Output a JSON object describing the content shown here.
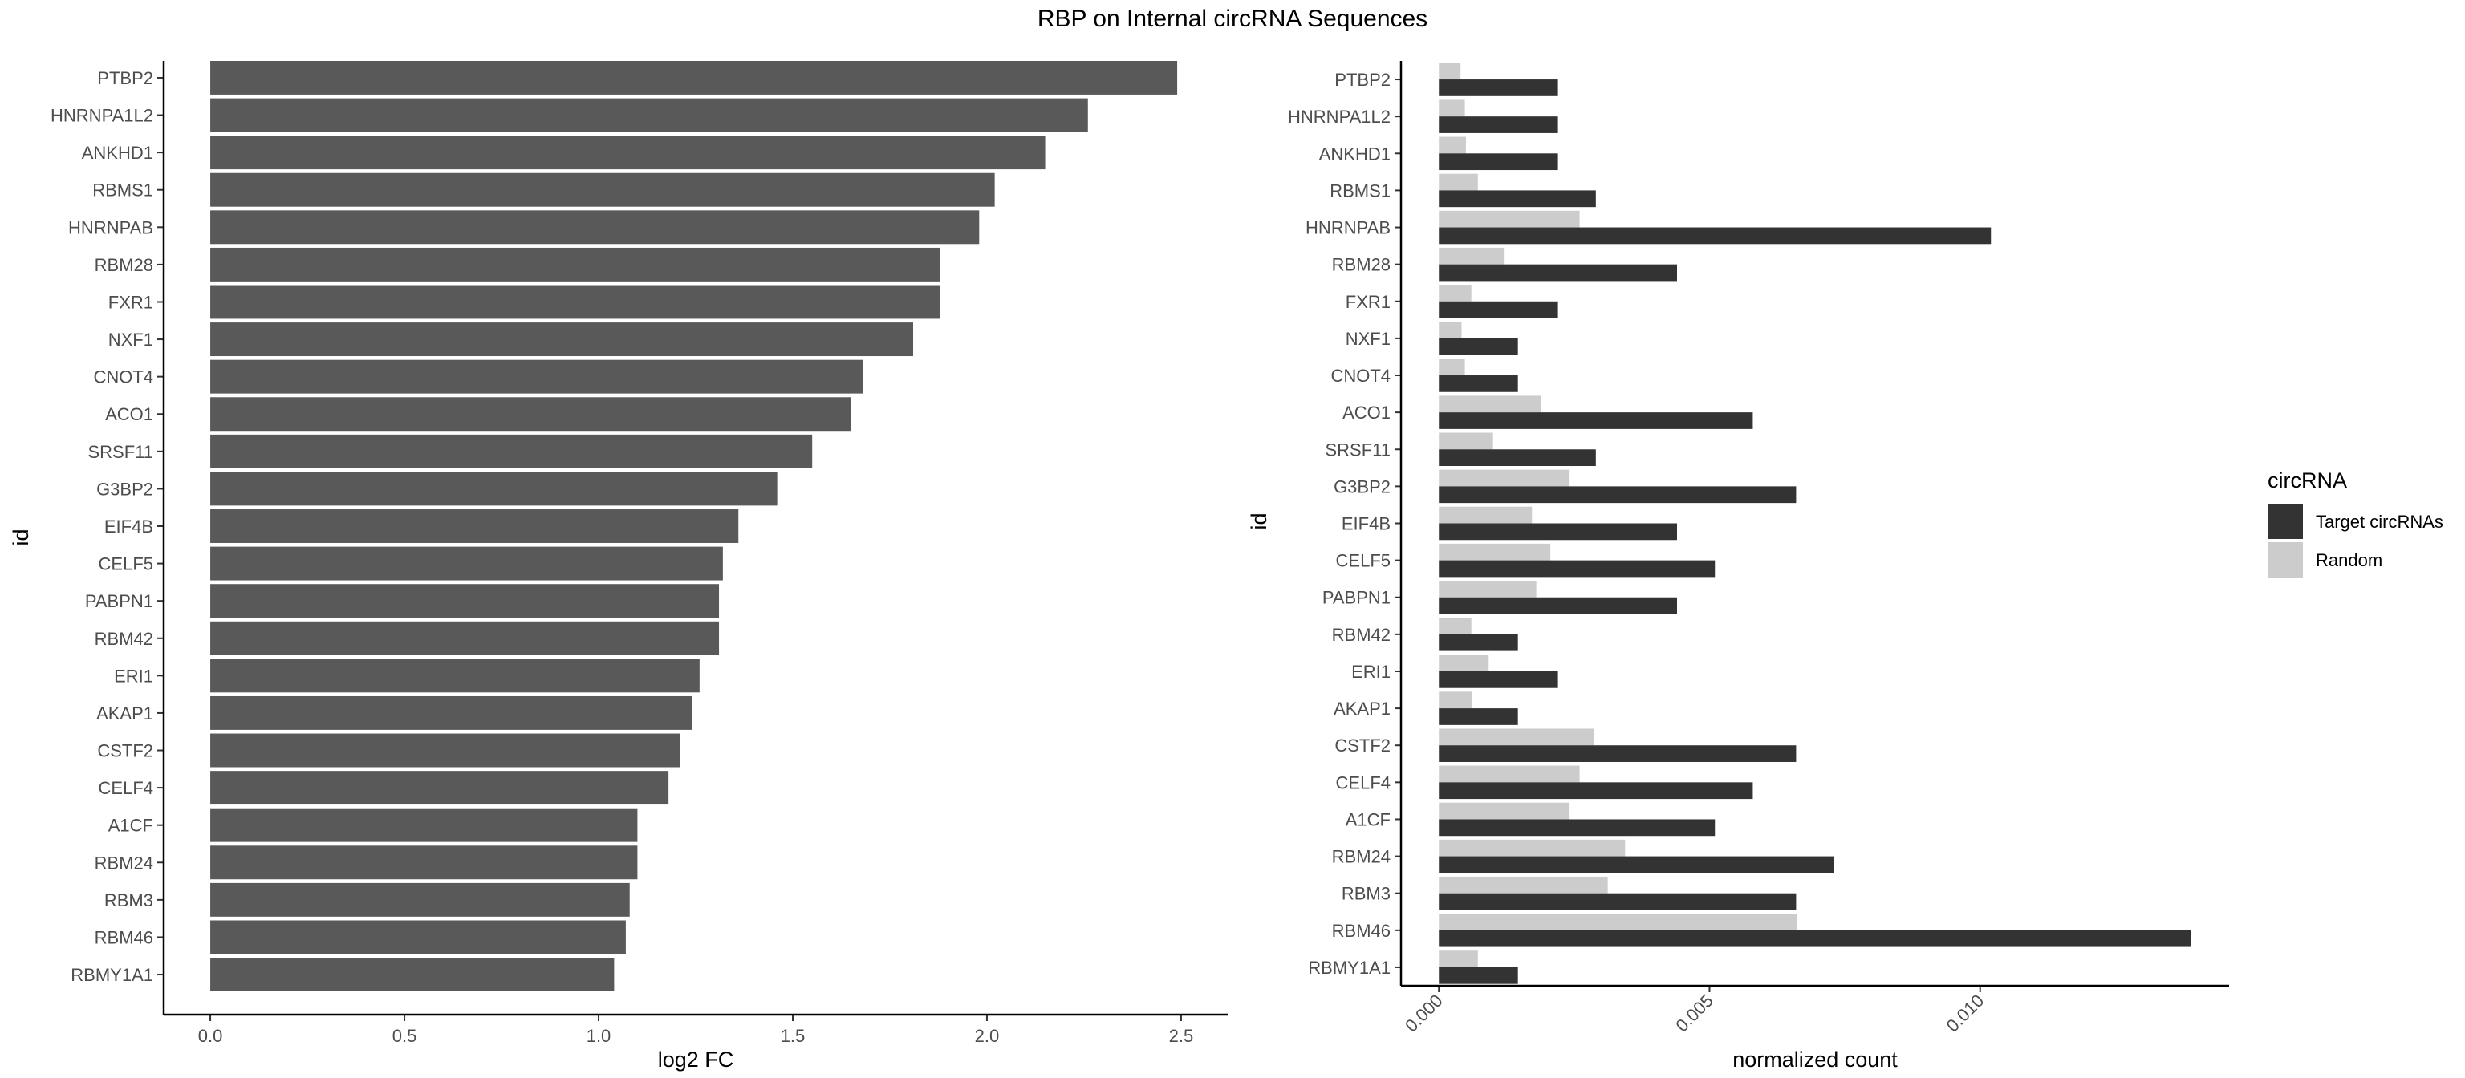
{
  "title": "RBP on Internal circRNA Sequences",
  "chart_data": [
    {
      "type": "bar",
      "orientation": "horizontal",
      "categories": [
        "PTBP2",
        "HNRNPA1L2",
        "ANKHD1",
        "RBMS1",
        "HNRNPAB",
        "RBM28",
        "FXR1",
        "NXF1",
        "CNOT4",
        "ACO1",
        "SRSF11",
        "G3BP2",
        "EIF4B",
        "CELF5",
        "PABPN1",
        "RBM42",
        "ERI1",
        "AKAP1",
        "CSTF2",
        "CELF4",
        "A1CF",
        "RBM24",
        "RBM3",
        "RBM46",
        "RBMY1A1"
      ],
      "values": [
        2.49,
        2.26,
        2.15,
        2.02,
        1.98,
        1.88,
        1.88,
        1.81,
        1.68,
        1.65,
        1.55,
        1.46,
        1.36,
        1.32,
        1.31,
        1.31,
        1.26,
        1.24,
        1.21,
        1.18,
        1.1,
        1.1,
        1.08,
        1.07,
        1.04
      ],
      "xlabel": "log2 FC",
      "ylabel": "id",
      "xlim": [
        -0.12,
        2.62
      ],
      "xticks": [
        "0.0",
        "0.5",
        "1.0",
        "1.5",
        "2.0",
        "2.5"
      ],
      "bar_color": "#595959",
      "grid": false
    },
    {
      "type": "bar",
      "orientation": "horizontal",
      "categories": [
        "PTBP2",
        "HNRNPA1L2",
        "ANKHD1",
        "RBMS1",
        "HNRNPAB",
        "RBM28",
        "FXR1",
        "NXF1",
        "CNOT4",
        "ACO1",
        "SRSF11",
        "G3BP2",
        "EIF4B",
        "CELF5",
        "PABPN1",
        "RBM42",
        "ERI1",
        "AKAP1",
        "CSTF2",
        "CELF4",
        "A1CF",
        "RBM24",
        "RBM3",
        "RBM46",
        "RBMY1A1"
      ],
      "series": [
        {
          "name": "Target circRNAs",
          "color": "#333333",
          "values": [
            0.0022,
            0.0022,
            0.0022,
            0.0029,
            0.0102,
            0.0044,
            0.0022,
            0.00146,
            0.00146,
            0.0058,
            0.0029,
            0.0066,
            0.0044,
            0.0051,
            0.0044,
            0.00146,
            0.0022,
            0.00146,
            0.0066,
            0.0058,
            0.0051,
            0.0073,
            0.0066,
            0.0139,
            0.00146
          ]
        },
        {
          "name": "Random",
          "color": "#cccccc",
          "values": [
            0.0004,
            0.00048,
            0.0005,
            0.00072,
            0.0026,
            0.0012,
            0.0006,
            0.00042,
            0.00048,
            0.00188,
            0.001,
            0.0024,
            0.00172,
            0.00206,
            0.0018,
            0.0006,
            0.00092,
            0.00062,
            0.00286,
            0.0026,
            0.0024,
            0.00344,
            0.00312,
            0.00662,
            0.00072
          ]
        }
      ],
      "xlabel": "normalized count",
      "ylabel": "id",
      "xlim": [
        -0.0007,
        0.0146
      ],
      "xticks": [
        "0.000",
        "0.005",
        "0.010"
      ],
      "legend": {
        "title": "circRNA",
        "position": "right"
      },
      "grid": false
    }
  ]
}
